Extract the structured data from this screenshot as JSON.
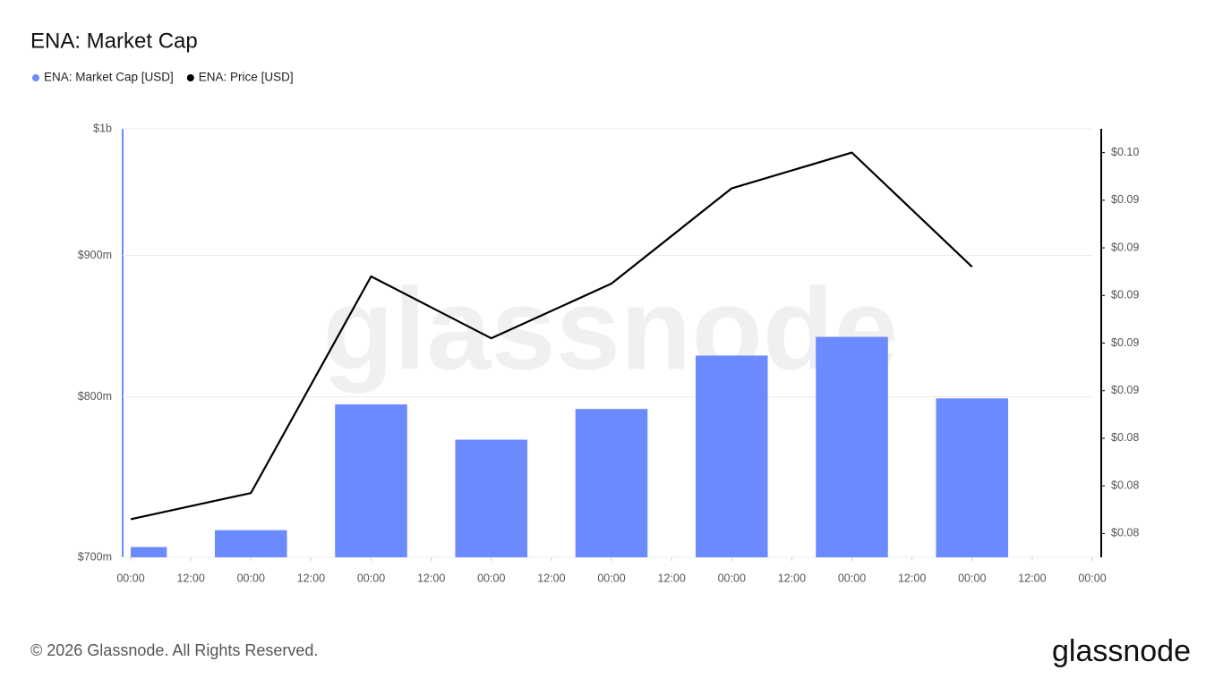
{
  "chart_data": {
    "type": "bar",
    "title": "ENA: Market Cap",
    "x": [
      0,
      24,
      48,
      72,
      96,
      120,
      144,
      168
    ],
    "xlim": [
      0,
      192
    ],
    "xticks": [
      {
        "value": 0,
        "label": "00:00"
      },
      {
        "value": 12,
        "label": "12:00"
      },
      {
        "value": 24,
        "label": "00:00"
      },
      {
        "value": 36,
        "label": "12:00"
      },
      {
        "value": 48,
        "label": "00:00"
      },
      {
        "value": 60,
        "label": "12:00"
      },
      {
        "value": 72,
        "label": "00:00"
      },
      {
        "value": 84,
        "label": "12:00"
      },
      {
        "value": 96,
        "label": "00:00"
      },
      {
        "value": 108,
        "label": "12:00"
      },
      {
        "value": 120,
        "label": "00:00"
      },
      {
        "value": 132,
        "label": "12:00"
      },
      {
        "value": 144,
        "label": "00:00"
      },
      {
        "value": 156,
        "label": "12:00"
      },
      {
        "value": 168,
        "label": "00:00"
      },
      {
        "value": 180,
        "label": "12:00"
      },
      {
        "value": 192,
        "label": "00:00"
      }
    ],
    "ylim": [
      700000000,
      1000000000
    ],
    "yscale": "log",
    "yticks": [
      {
        "value": 700000000,
        "label": "$700m"
      },
      {
        "value": 800000000,
        "label": "$800m"
      },
      {
        "value": 900000000,
        "label": "$900m"
      },
      {
        "value": 1000000000,
        "label": "$1b"
      }
    ],
    "y2lim": [
      0.0782,
      0.0962
    ],
    "y2ticks": [
      {
        "value": 0.0792,
        "label": "$0.08"
      },
      {
        "value": 0.0812,
        "label": "$0.08"
      },
      {
        "value": 0.0832,
        "label": "$0.08"
      },
      {
        "value": 0.0852,
        "label": "$0.09"
      },
      {
        "value": 0.0872,
        "label": "$0.09"
      },
      {
        "value": 0.0892,
        "label": "$0.09"
      },
      {
        "value": 0.0912,
        "label": "$0.09"
      },
      {
        "value": 0.0932,
        "label": "$0.09"
      },
      {
        "value": 0.0952,
        "label": "$0.10"
      }
    ],
    "grid": true,
    "series": [
      {
        "name": "ENA: Market Cap [USD]",
        "type": "bar",
        "color": "#6b8afd",
        "values": [
          706000000,
          716000000,
          795000000,
          772000000,
          792000000,
          828000000,
          841000000,
          799000000
        ]
      },
      {
        "name": "ENA: Price [USD]",
        "type": "line",
        "axis": "y2",
        "color": "#000000",
        "values": [
          0.0798,
          0.0809,
          0.09,
          0.0874,
          0.0897,
          0.0937,
          0.0952,
          0.0904
        ]
      }
    ]
  },
  "watermark": "glassnode",
  "footer": {
    "copyright": "© 2026 Glassnode. All Rights Reserved.",
    "logo": "glassnode"
  }
}
